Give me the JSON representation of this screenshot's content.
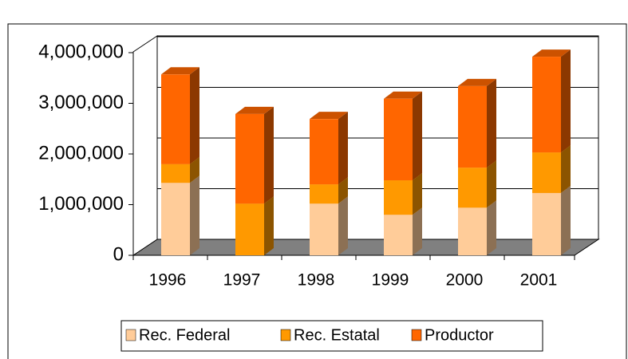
{
  "chart_data": {
    "type": "bar",
    "stacked": true,
    "categories": [
      "1996",
      "1997",
      "1998",
      "1999",
      "2000",
      "2001"
    ],
    "series": [
      {
        "name": "Rec. Federal",
        "color": "#ffcc99",
        "values": [
          1430000,
          0,
          1020000,
          800000,
          940000,
          1230000
        ]
      },
      {
        "name": "Rec. Estatal",
        "color": "#ff9900",
        "values": [
          370000,
          1020000,
          380000,
          680000,
          790000,
          800000
        ]
      },
      {
        "name": "Productor",
        "color": "#ff6600",
        "values": [
          1770000,
          1770000,
          1290000,
          1610000,
          1610000,
          1890000
        ]
      }
    ],
    "ylim": [
      0,
      4000000
    ],
    "yticks": [
      0,
      {
        "value": 1000000,
        "label": "1,000,000"
      },
      {
        "value": 2000000,
        "label": "2,000,000"
      },
      {
        "value": 3000000,
        "label": "3,000,000"
      },
      {
        "value": 4000000,
        "label": "4,000,000"
      }
    ],
    "grid": true,
    "legend": "bottom"
  }
}
